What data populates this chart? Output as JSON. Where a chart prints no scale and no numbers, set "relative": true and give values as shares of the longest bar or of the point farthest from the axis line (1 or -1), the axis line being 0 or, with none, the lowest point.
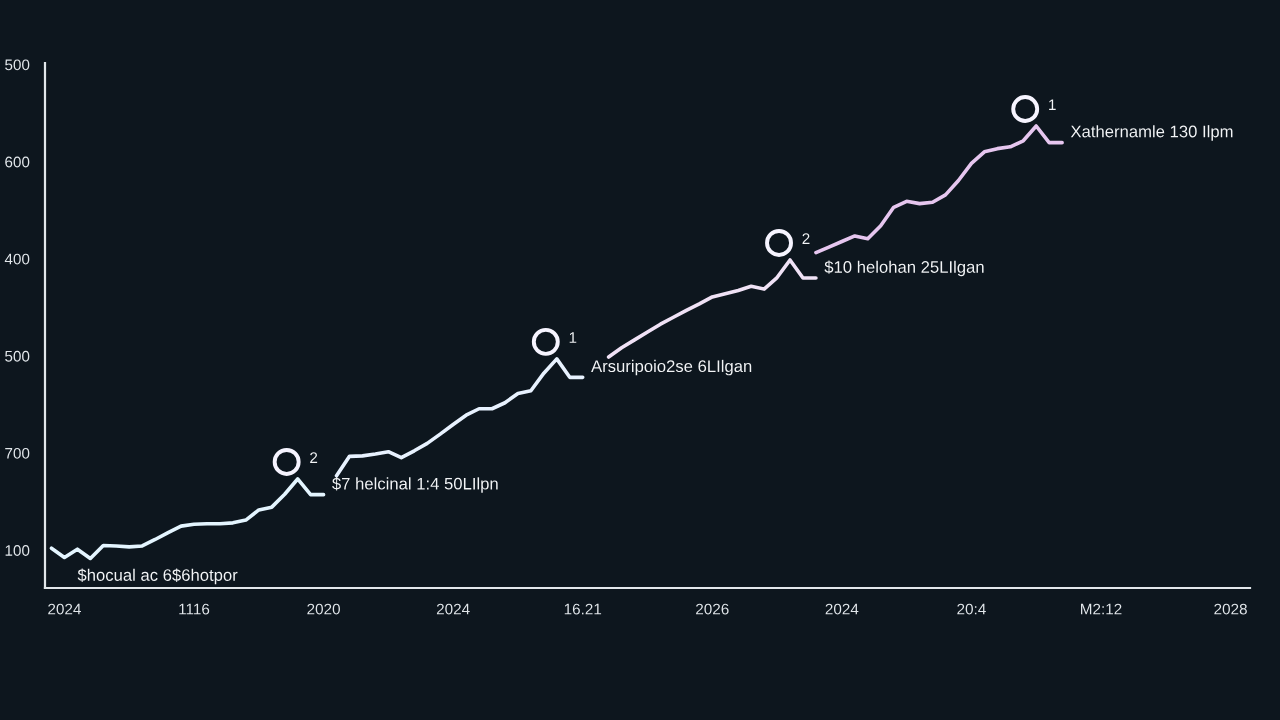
{
  "chart_data": {
    "type": "line",
    "relative": true,
    "categories": [
      null,
      "2024",
      null,
      null,
      null,
      null,
      null,
      null,
      null,
      null,
      null,
      "1116",
      null,
      null,
      null,
      null,
      null,
      null,
      null,
      null,
      null,
      "2020",
      null,
      null,
      null,
      null,
      null,
      null,
      null,
      null,
      null,
      "2024",
      null,
      null,
      null,
      null,
      null,
      null,
      null,
      null,
      null,
      "16.21",
      null,
      null,
      null,
      null,
      null,
      null,
      null,
      null,
      null,
      "2026",
      null,
      null,
      null,
      null,
      null,
      null,
      null,
      null,
      null,
      "2024",
      null,
      null,
      null,
      null,
      null,
      null,
      null,
      null,
      null,
      "20:4",
      null,
      null,
      null,
      null,
      null,
      null,
      null,
      null,
      null,
      "M2:12",
      null,
      null,
      null,
      null,
      null,
      null,
      null,
      null,
      null,
      "2028",
      null
    ],
    "series": [
      {
        "color": "#e4f5ff",
        "values": [
          0.086,
          0.066,
          0.084,
          0.064,
          0.092,
          0.091,
          0.089,
          0.091,
          0.105,
          0.12,
          0.134,
          0.138,
          0.139,
          0.139,
          0.141,
          0.147,
          0.169,
          0.175,
          0.203,
          0.236,
          0.202,
          0.202,
          null,
          null,
          null,
          null,
          null,
          null,
          null,
          null,
          null,
          null,
          null,
          null,
          null,
          null,
          null,
          null,
          null,
          null,
          null,
          null,
          null,
          null,
          null,
          null,
          null,
          null,
          null,
          null,
          null,
          null,
          null,
          null,
          null,
          null,
          null,
          null,
          null,
          null,
          null,
          null,
          null,
          null,
          null,
          null,
          null,
          null,
          null,
          null,
          null,
          null,
          null,
          null,
          null,
          null,
          null,
          null,
          null,
          null,
          null,
          null,
          null,
          null,
          null,
          null,
          null,
          null,
          null,
          null,
          null,
          null,
          null
        ]
      },
      {
        "color": "#e8f2ff",
        "values": [
          null,
          null,
          null,
          null,
          null,
          null,
          null,
          null,
          null,
          null,
          null,
          null,
          null,
          null,
          null,
          null,
          null,
          null,
          null,
          null,
          null,
          null,
          0.243,
          0.285,
          0.286,
          0.29,
          0.295,
          0.282,
          0.297,
          0.313,
          0.333,
          0.354,
          0.374,
          0.388,
          0.388,
          0.401,
          0.421,
          0.427,
          0.465,
          0.496,
          0.456,
          0.456,
          null,
          null,
          null,
          null,
          null,
          null,
          null,
          null,
          null,
          null,
          null,
          null,
          null,
          null,
          null,
          null,
          null,
          null,
          null,
          null,
          null,
          null,
          null,
          null,
          null,
          null,
          null,
          null,
          null,
          null,
          null,
          null,
          null,
          null,
          null,
          null,
          null,
          null,
          null,
          null,
          null,
          null,
          null,
          null,
          null,
          null,
          null,
          null,
          null,
          null,
          null
        ]
      },
      {
        "color": "#f0e2f6",
        "values": [
          null,
          null,
          null,
          null,
          null,
          null,
          null,
          null,
          null,
          null,
          null,
          null,
          null,
          null,
          null,
          null,
          null,
          null,
          null,
          null,
          null,
          null,
          null,
          null,
          null,
          null,
          null,
          null,
          null,
          null,
          null,
          null,
          null,
          null,
          null,
          null,
          null,
          null,
          null,
          null,
          null,
          null,
          null,
          0.5,
          0.52,
          0.537,
          0.554,
          0.571,
          0.586,
          0.601,
          0.615,
          0.63,
          0.637,
          0.644,
          0.653,
          0.647,
          0.672,
          0.71,
          0.671,
          0.671,
          null,
          null,
          null,
          null,
          null,
          null,
          null,
          null,
          null,
          null,
          null,
          null,
          null,
          null,
          null,
          null,
          null,
          null,
          null,
          null,
          null,
          null,
          null,
          null,
          null,
          null,
          null,
          null,
          null,
          null,
          null,
          null,
          null
        ]
      },
      {
        "color": "#e6c6ef",
        "values": [
          null,
          null,
          null,
          null,
          null,
          null,
          null,
          null,
          null,
          null,
          null,
          null,
          null,
          null,
          null,
          null,
          null,
          null,
          null,
          null,
          null,
          null,
          null,
          null,
          null,
          null,
          null,
          null,
          null,
          null,
          null,
          null,
          null,
          null,
          null,
          null,
          null,
          null,
          null,
          null,
          null,
          null,
          null,
          null,
          null,
          null,
          null,
          null,
          null,
          null,
          null,
          null,
          null,
          null,
          null,
          null,
          null,
          null,
          null,
          0.726,
          0.738,
          0.75,
          0.762,
          0.756,
          0.784,
          0.824,
          0.837,
          0.832,
          0.835,
          0.851,
          0.882,
          0.919,
          0.944,
          0.951,
          0.955,
          0.968,
          1.0,
          0.964,
          0.964,
          null,
          null,
          null,
          null,
          null,
          null,
          null,
          null,
          null,
          null,
          null,
          null,
          null,
          null
        ]
      }
    ],
    "annotations": [
      "500",
      "600",
      "400",
      "500",
      "700",
      "100",
      "$hocual ac 6$6hotpor",
      "2",
      "$7 helcinal 1:4 50LIlpn",
      "1",
      "Arsuripoio2se 6LIlgan",
      "2",
      "$10 helohan 25LIlgan",
      "1",
      "Xathernamle 130 Ilpm"
    ]
  }
}
